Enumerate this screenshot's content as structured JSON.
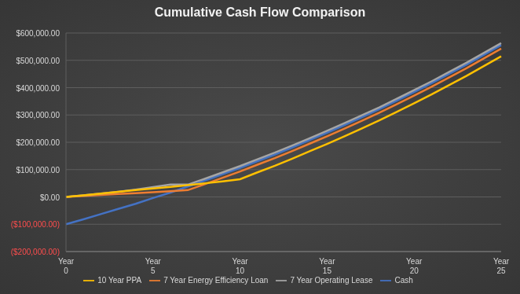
{
  "chart_data": {
    "type": "line",
    "title": "Cumulative Cash Flow Comparison",
    "categories": [
      "Year 0",
      null,
      null,
      null,
      null,
      "Year 5",
      null,
      null,
      null,
      null,
      "Year 10",
      null,
      null,
      null,
      null,
      "Year 15",
      null,
      null,
      null,
      null,
      "Year 20",
      null,
      null,
      null,
      null,
      "Year 25"
    ],
    "series": [
      {
        "name": "Cash",
        "color": "#4472c4",
        "values": [
          -100000,
          -82000,
          -63000,
          -44000,
          -25000,
          -4000,
          16000,
          38000,
          60000,
          83000,
          106000,
          131000,
          155000,
          181000,
          208000,
          235000,
          263000,
          292000,
          321000,
          352000,
          384000,
          416000,
          450000,
          484000,
          520000,
          556000
        ]
      },
      {
        "name": "7 Year Energy Efficiency Loan",
        "color": "#ed7d31",
        "values": [
          0,
          3500,
          7000,
          10500,
          14000,
          17500,
          21000,
          25000,
          47000,
          70000,
          93000,
          118000,
          142000,
          168000,
          195000,
          222000,
          250000,
          279000,
          308000,
          339000,
          371000,
          403000,
          437000,
          471000,
          507000,
          543000
        ]
      },
      {
        "name": "7 Year Operating Lease",
        "color": "#a5a5a5",
        "values": [
          0,
          6000,
          12000,
          19000,
          27000,
          36000,
          45000,
          45000,
          67000,
          90000,
          113000,
          138000,
          162000,
          188000,
          215000,
          242000,
          270000,
          299000,
          328000,
          359000,
          391000,
          423000,
          457000,
          491000,
          527000,
          563000
        ]
      },
      {
        "name": "10 Year PPA",
        "color": "#ffc000",
        "values": [
          0,
          6000,
          12000,
          19000,
          25000,
          31000,
          37000,
          43000,
          50000,
          57000,
          65000,
          90000,
          114000,
          140000,
          167000,
          194000,
          222000,
          251000,
          280000,
          311000,
          343000,
          375000,
          409000,
          443000,
          479000,
          515000
        ]
      }
    ],
    "ylim": [
      -200000,
      600000
    ],
    "yticks": [
      {
        "value": -200000,
        "label": "($200,000.00)"
      },
      {
        "value": -100000,
        "label": "($100,000.00)"
      },
      {
        "value": 0,
        "label": "$0.00"
      },
      {
        "value": 100000,
        "label": "$100,000.00"
      },
      {
        "value": 200000,
        "label": "$200,000.00"
      },
      {
        "value": 300000,
        "label": "$300,000.00"
      },
      {
        "value": 400000,
        "label": "$400,000.00"
      },
      {
        "value": 500000,
        "label": "$500,000.00"
      },
      {
        "value": 600000,
        "label": "$600,000.00"
      }
    ],
    "grid": true,
    "legend": "bottom"
  }
}
